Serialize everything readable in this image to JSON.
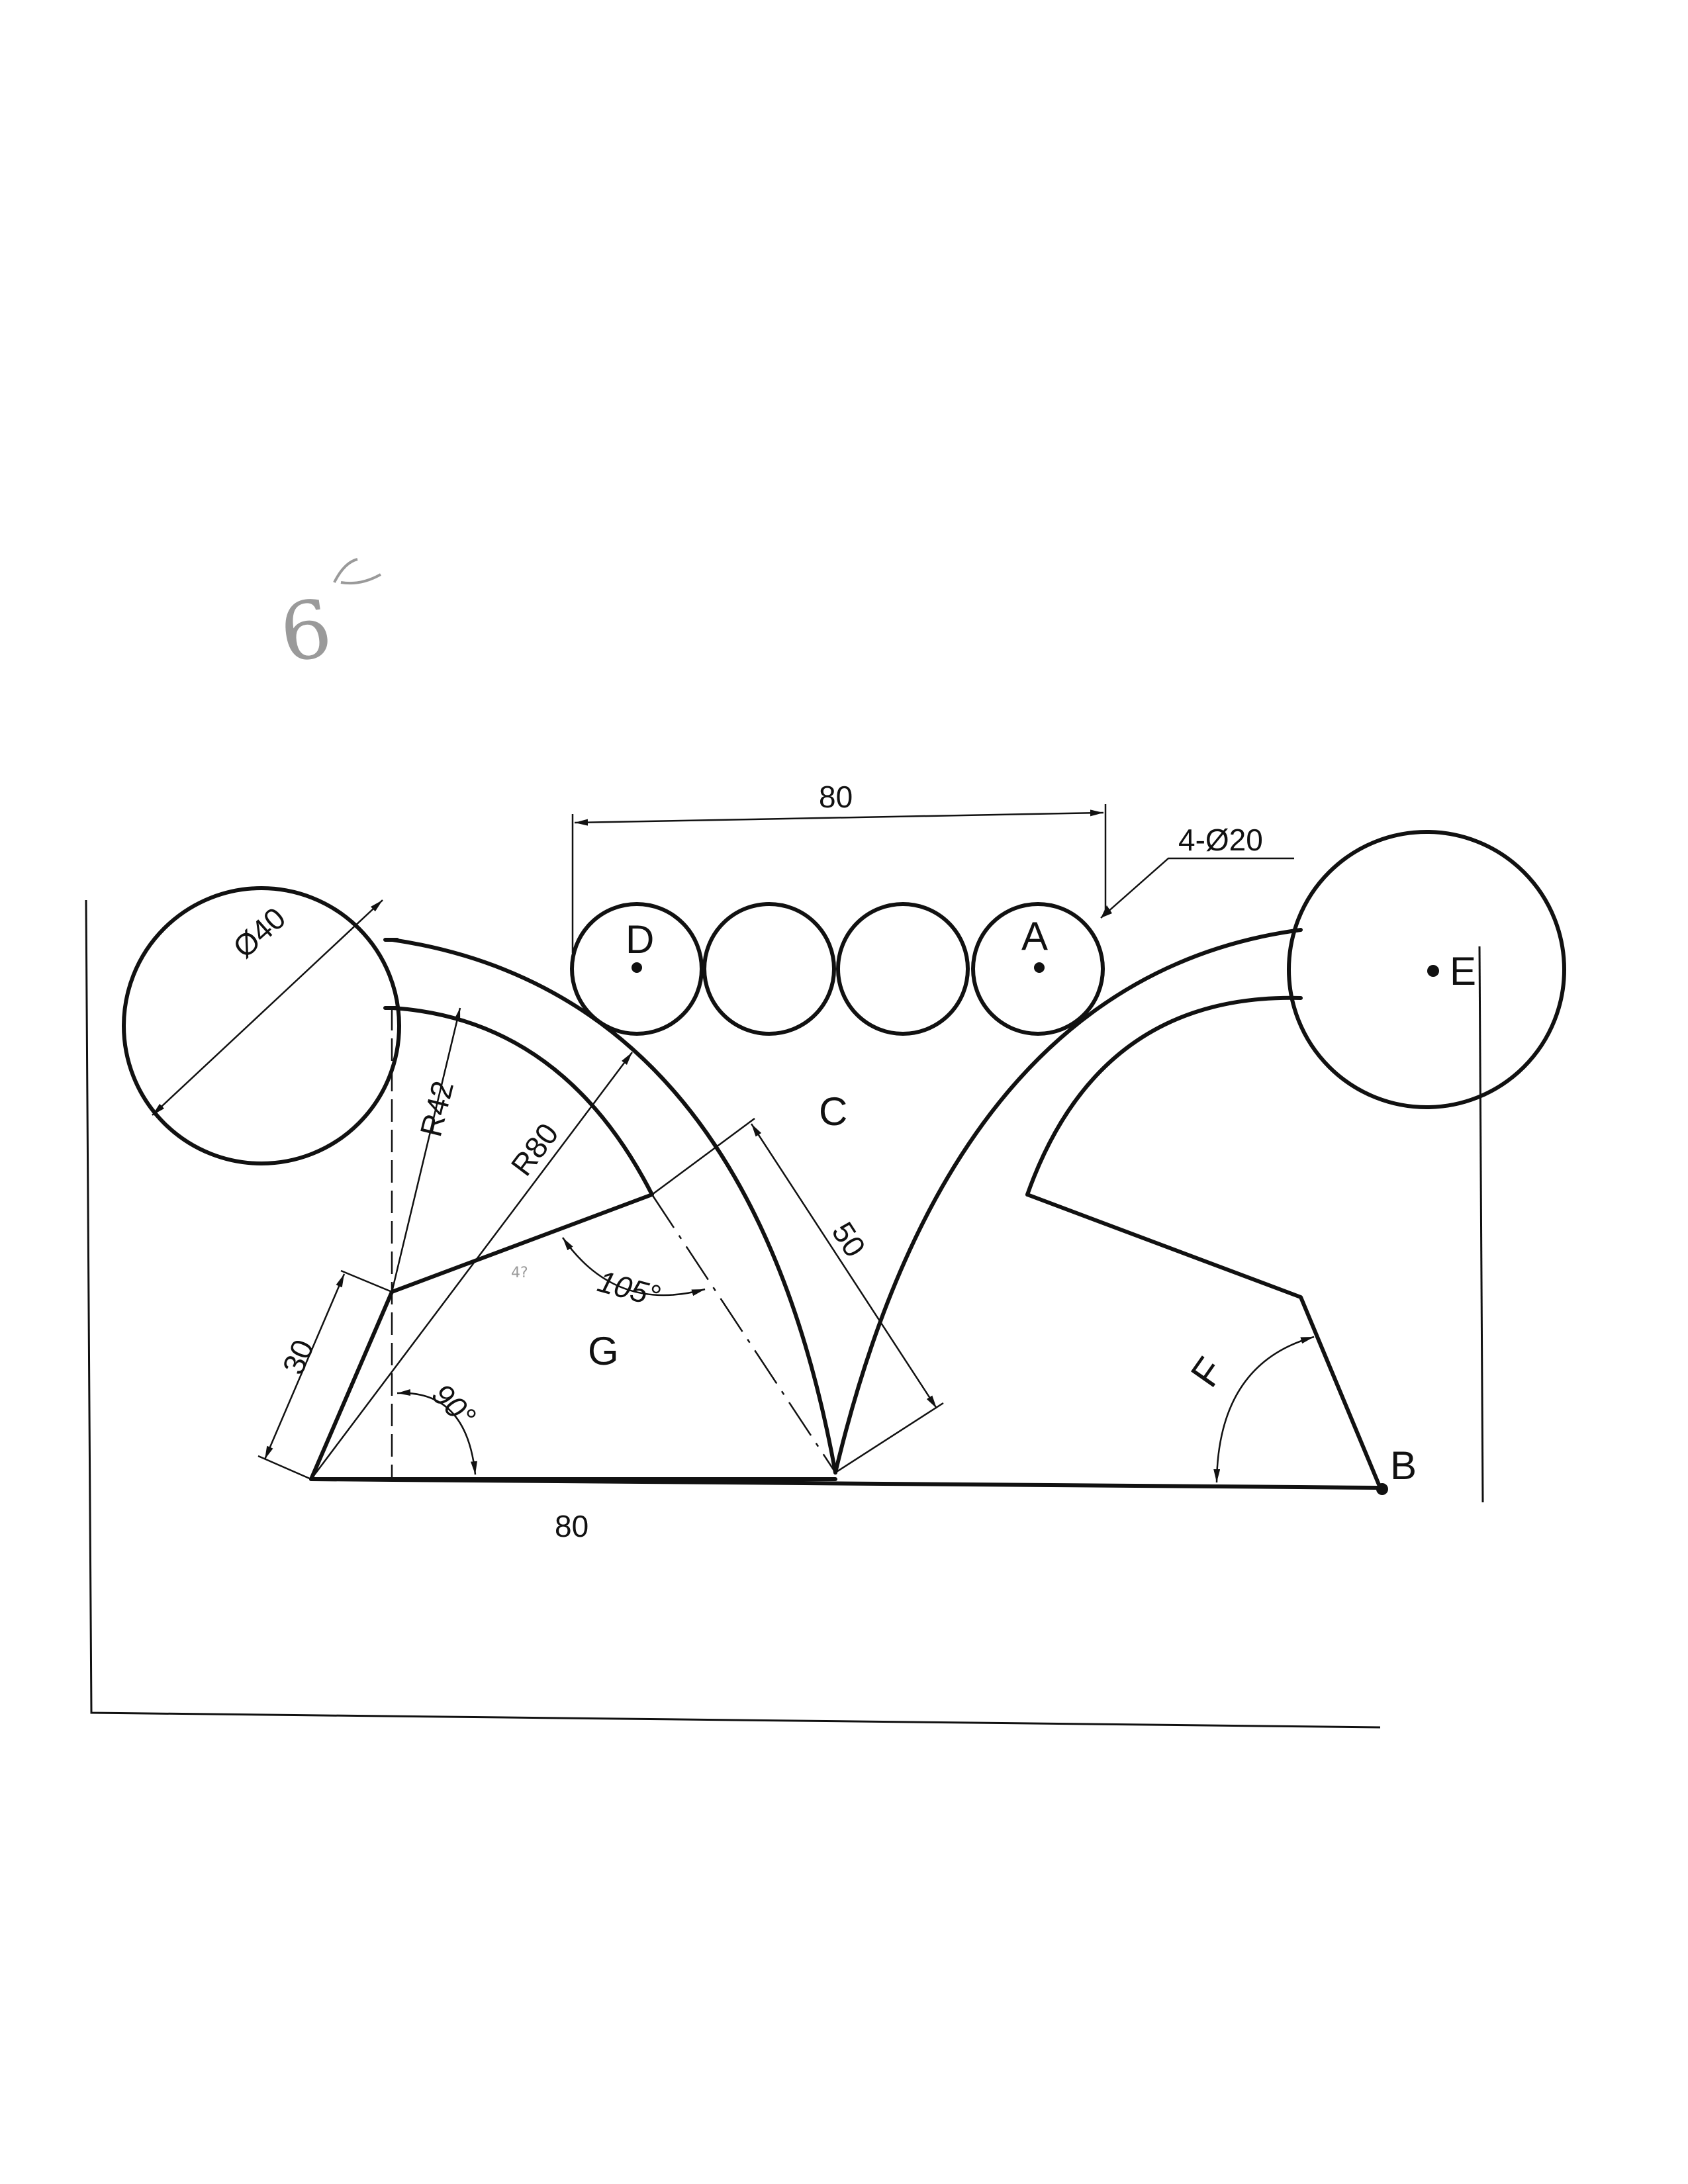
{
  "handwritten_mark": "6",
  "handwritten_note": "4?",
  "point_labels": {
    "A": "A",
    "B": "B",
    "C": "C",
    "D": "D",
    "E": "E",
    "F": "F",
    "G": "G"
  },
  "dimensions": {
    "top_span": "80",
    "bottom_span": "80",
    "small_circles": "4-Ø20",
    "big_circle_diameter": "Ø40",
    "radius_small": "R42",
    "radius_large": "R80",
    "side_length": "30",
    "slant_length": "50",
    "angle_obtuse": "105°",
    "angle_right": "90°"
  }
}
